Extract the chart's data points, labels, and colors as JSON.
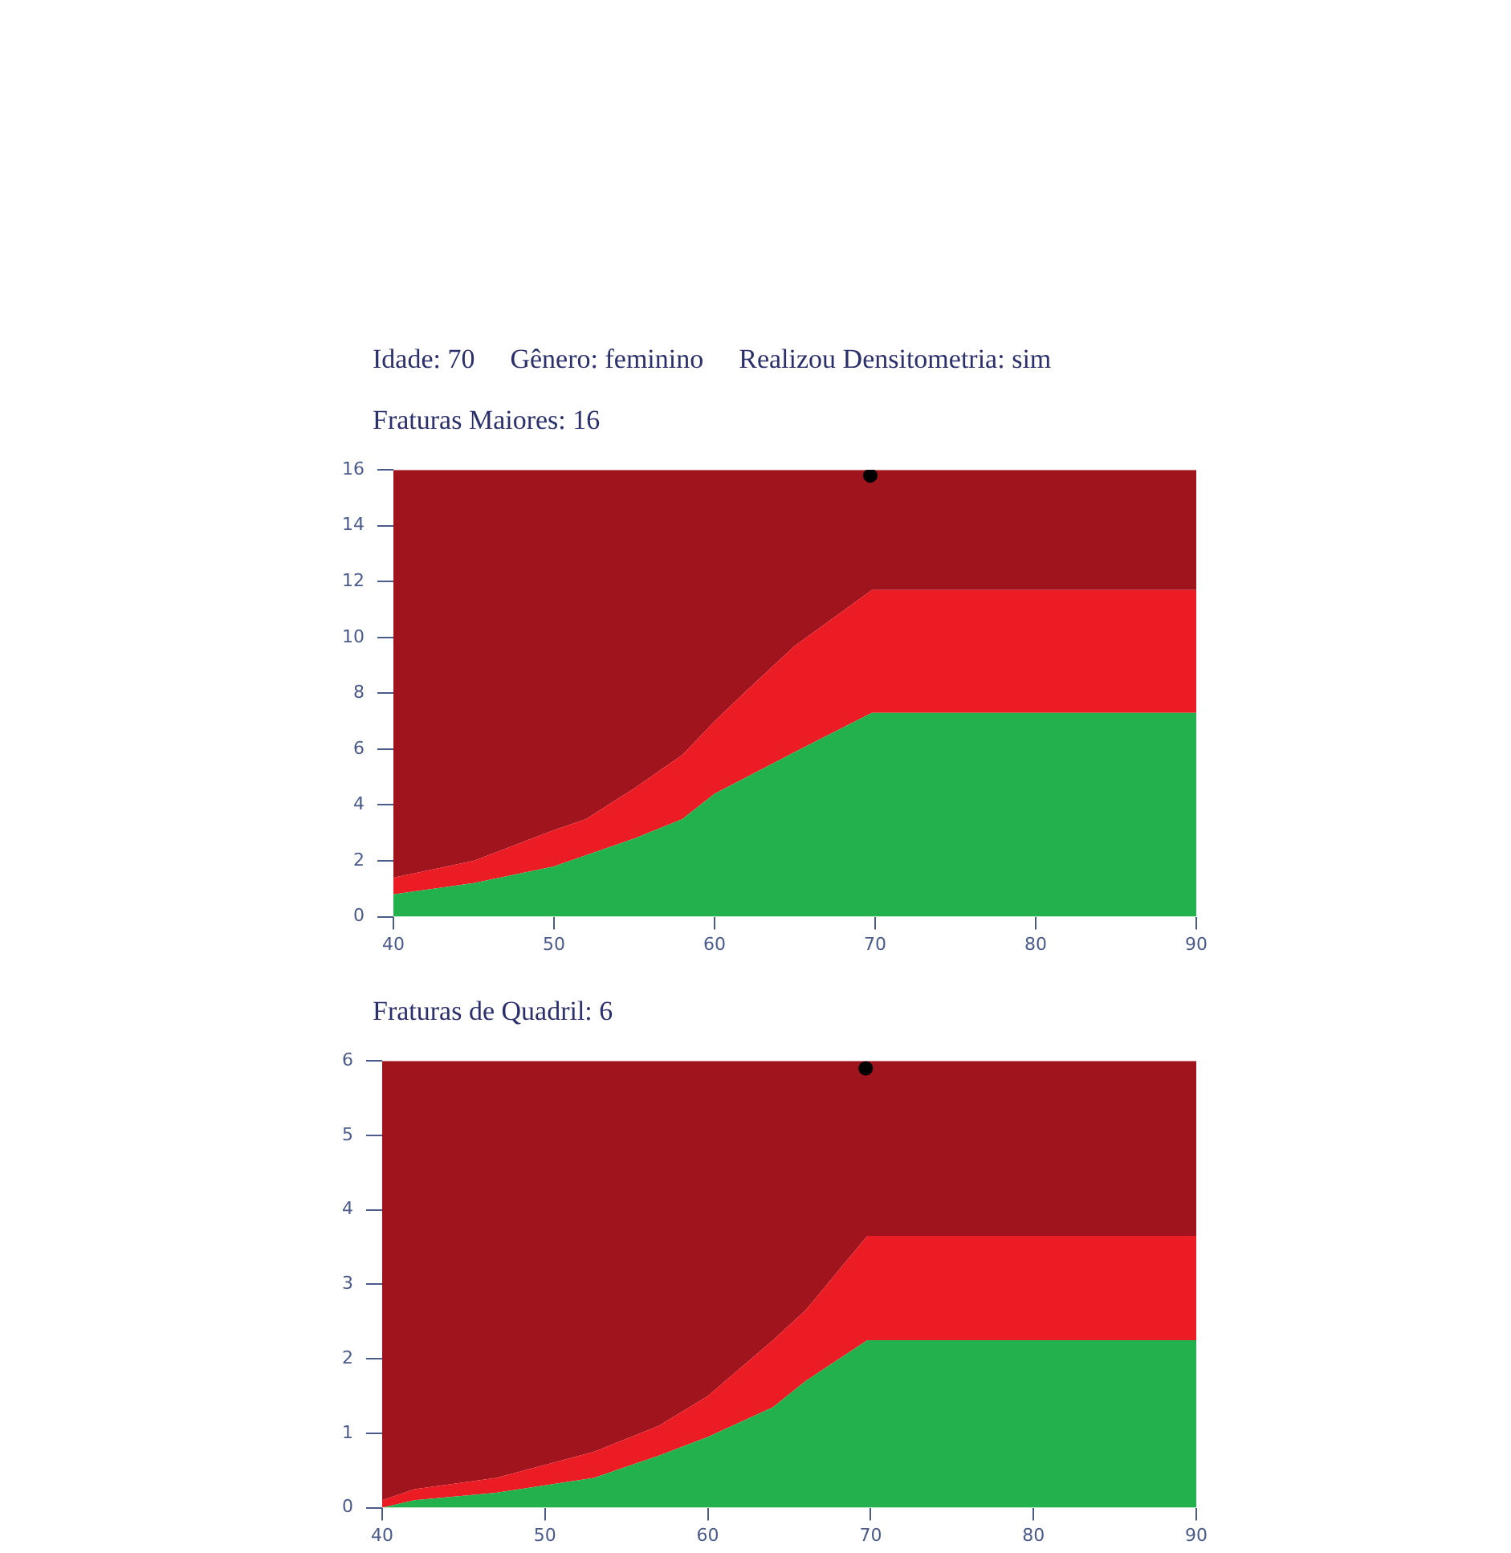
{
  "chart_data": [
    {
      "type": "area",
      "title": "Fraturas Maiores: 16",
      "annotations": [
        "Idade: 70",
        "Gênero: feminino",
        "Realizou Densitometria: sim"
      ],
      "stacked": true,
      "x": [
        40,
        45,
        50,
        52,
        55,
        58,
        60,
        62,
        65,
        69.8,
        90
      ],
      "xlim": [
        40,
        90
      ],
      "xticks": [
        40,
        50,
        60,
        70,
        80,
        90
      ],
      "ylim": [
        0,
        16
      ],
      "yticks": [
        0,
        2,
        4,
        6,
        8,
        10,
        12,
        14,
        16
      ],
      "grid": false,
      "legend": false,
      "marker": "none",
      "series": [
        {
          "color": "#23b14d",
          "values": [
            0.8,
            1.2,
            1.8,
            2.2,
            2.8,
            3.5,
            4.4,
            5.0,
            5.9,
            7.3,
            7.3
          ]
        },
        {
          "color": "#ec1c24",
          "values": [
            0.6,
            0.8,
            1.3,
            1.3,
            1.8,
            2.3,
            2.6,
            3.1,
            3.8,
            4.4,
            4.4
          ]
        },
        {
          "color": "#a0141e",
          "values": [
            14.6,
            14.0,
            12.9,
            12.5,
            11.4,
            10.2,
            9.0,
            7.9,
            6.3,
            4.3,
            4.3
          ]
        },
        {
          "type": "scatter",
          "marker": "circle",
          "color": "#000000",
          "x": [
            69.7
          ],
          "values": [
            15.8
          ]
        }
      ]
    },
    {
      "type": "area",
      "title": "Fraturas de Quadril: 6",
      "stacked": true,
      "x": [
        40,
        42,
        47,
        53,
        57,
        60,
        64,
        66,
        69.8,
        90
      ],
      "xlim": [
        40,
        90
      ],
      "xticks": [
        40,
        50,
        60,
        70,
        80,
        90
      ],
      "ylim": [
        0,
        6
      ],
      "yticks": [
        0,
        1,
        2,
        3,
        4,
        5,
        6
      ],
      "grid": false,
      "legend": false,
      "marker": "none",
      "series": [
        {
          "color": "#23b14d",
          "values": [
            0.0,
            0.1,
            0.2,
            0.4,
            0.7,
            0.95,
            1.35,
            1.7,
            2.25,
            2.25
          ]
        },
        {
          "color": "#ec1c24",
          "values": [
            0.1,
            0.15,
            0.2,
            0.35,
            0.4,
            0.55,
            0.9,
            0.95,
            1.4,
            1.4
          ]
        },
        {
          "color": "#a0141e",
          "values": [
            5.9,
            5.75,
            5.6,
            5.25,
            4.9,
            4.5,
            3.75,
            3.35,
            2.35,
            2.35
          ]
        },
        {
          "type": "scatter",
          "marker": "circle",
          "color": "#000000",
          "x": [
            69.7
          ],
          "values": [
            5.9
          ]
        }
      ]
    }
  ]
}
